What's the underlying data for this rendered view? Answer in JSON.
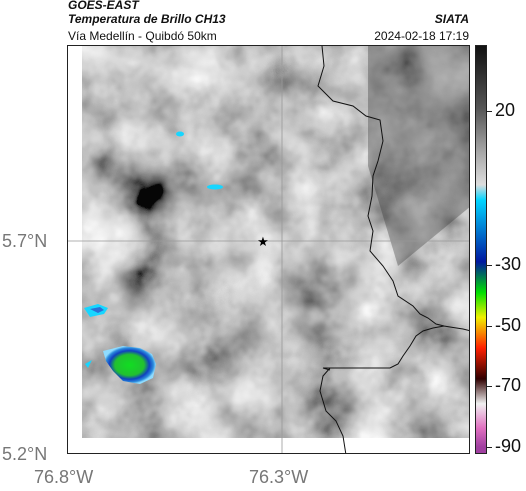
{
  "header": {
    "satellite": "GOES-EAST",
    "product": "Temperatura de Brillo CH13",
    "route": "Vía Medellín - Quibdó 50km",
    "org": "SIATA",
    "timestamp": "2024-02-18 17:19"
  },
  "map": {
    "lat_labels": [
      "5.7°N",
      "5.2°N"
    ],
    "lon_labels": [
      "76.8°W",
      "76.3°W"
    ],
    "marker": "star",
    "gridlines": true
  },
  "colorbar": {
    "tick_labels": [
      "20",
      "-30",
      "-50",
      "-70",
      "-90"
    ],
    "stops": [
      {
        "v": 40,
        "c": "#111111"
      },
      {
        "v": 20,
        "c": "#555555"
      },
      {
        "v": 5,
        "c": "#aaaaaa"
      },
      {
        "v": -5,
        "c": "#dddddd"
      },
      {
        "v": -10,
        "c": "#00d4ff"
      },
      {
        "v": -30,
        "c": "#0018a0"
      },
      {
        "v": -40,
        "c": "#00e000"
      },
      {
        "v": -48,
        "c": "#f0f000"
      },
      {
        "v": -58,
        "c": "#ff2000"
      },
      {
        "v": -68,
        "c": "#300000"
      },
      {
        "v": -76,
        "c": "#f0f0f0"
      },
      {
        "v": -84,
        "c": "#e070c0"
      },
      {
        "v": -90,
        "c": "#a040a0"
      }
    ]
  },
  "colors": {
    "cloud_cyan": "#17d6ff",
    "cloud_blue": "#1a3cc8",
    "cloud_green": "#22cc22",
    "border": "#111111"
  }
}
